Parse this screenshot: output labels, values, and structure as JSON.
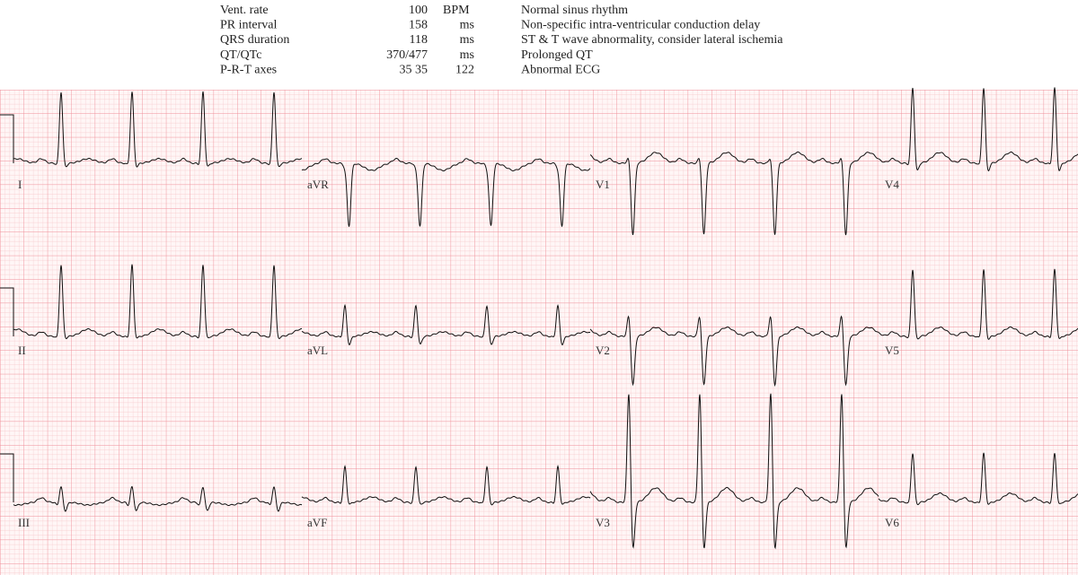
{
  "measurements": [
    {
      "label": "Vent. rate",
      "value": "100",
      "unit": "BPM"
    },
    {
      "label": "PR interval",
      "value": "158",
      "unit": "ms"
    },
    {
      "label": "QRS duration",
      "value": "118",
      "unit": "ms"
    },
    {
      "label": "QT/QTc",
      "value": "370/477",
      "unit": "ms"
    },
    {
      "label": "P-R-T axes",
      "value": "35  35",
      "unit": "122"
    }
  ],
  "interpretation": [
    "Normal sinus rhythm",
    "Non-specific intra-ventricular conduction delay",
    "ST & T wave abnormality, consider lateral ischemia",
    "Prolonged QT",
    "Abnormal ECG"
  ],
  "leads": [
    [
      "I",
      "aVR",
      "V1",
      "V4"
    ],
    [
      "II",
      "aVL",
      "V2",
      "V5"
    ],
    [
      "III",
      "aVF",
      "V3",
      "V6"
    ]
  ]
}
